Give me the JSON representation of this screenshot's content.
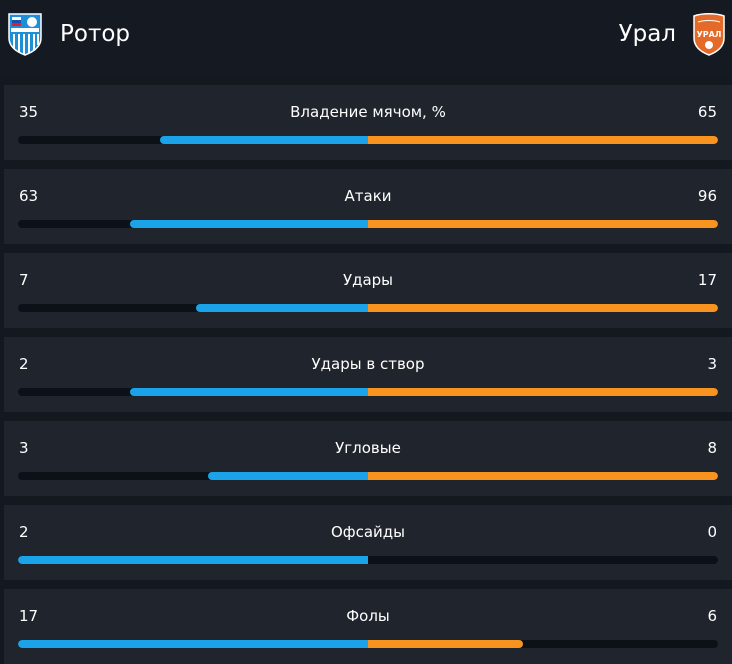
{
  "home_team": {
    "name": "Ротор",
    "logo_icon": "rotor-logo-icon",
    "color": "#1aa3e8"
  },
  "away_team": {
    "name": "Урал",
    "logo_icon": "ural-logo-icon",
    "color": "#f7931e"
  },
  "stats": [
    {
      "label": "Владение мячом, %",
      "home": "35",
      "away": "65",
      "home_share": 0.35,
      "away_share": 0.65
    },
    {
      "label": "Атаки",
      "home": "63",
      "away": "96",
      "home_share": 0.4,
      "away_share": 0.6
    },
    {
      "label": "Удары",
      "home": "7",
      "away": "17",
      "home_share": 0.29,
      "away_share": 0.71
    },
    {
      "label": "Удары в створ",
      "home": "2",
      "away": "3",
      "home_share": 0.4,
      "away_share": 0.6
    },
    {
      "label": "Угловые",
      "home": "3",
      "away": "8",
      "home_share": 0.27,
      "away_share": 0.73
    },
    {
      "label": "Офсайды",
      "home": "2",
      "away": "0",
      "home_share": 1.0,
      "away_share": 0.0
    },
    {
      "label": "Фолы",
      "home": "17",
      "away": "6",
      "home_share": 0.74,
      "away_share": 0.26
    }
  ]
}
